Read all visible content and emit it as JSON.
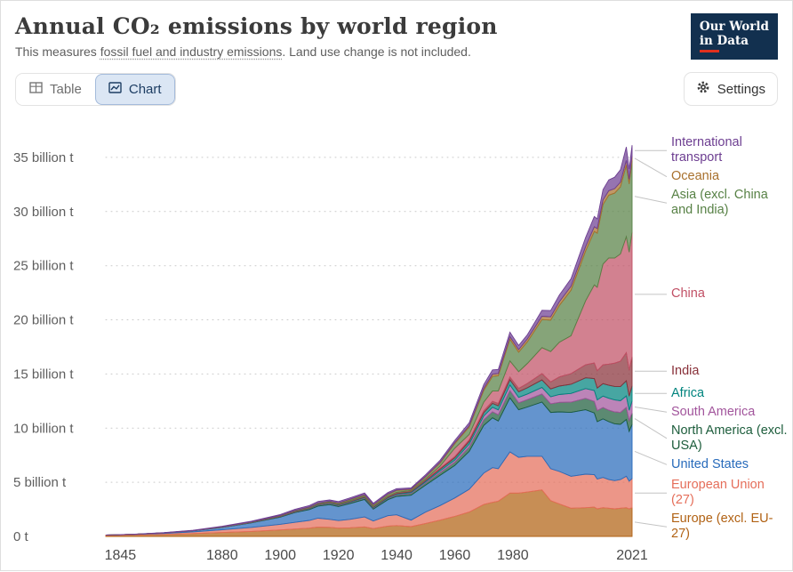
{
  "header": {
    "title": "Annual CO₂ emissions by world region",
    "subtitle_prefix": "This measures ",
    "subtitle_underlined": "fossil fuel and industry emissions",
    "subtitle_suffix": ". Land use change is not included.",
    "logo_line1": "Our World",
    "logo_line2": "in Data"
  },
  "toolbar": {
    "table_label": "Table",
    "chart_label": "Chart",
    "settings_label": "Settings",
    "icons": {
      "table": "table-grid-icon",
      "chart": "line-chart-icon",
      "settings": "gear-icon"
    }
  },
  "chart_data": {
    "type": "area",
    "stacked": true,
    "title": "Annual CO₂ emissions by world region",
    "unit": "billion t",
    "xlabel": "",
    "ylabel": "",
    "grid": "dotted-horizontal",
    "legend_position": "right",
    "xlim": [
      1840,
      2021
    ],
    "ylim": [
      0,
      36.8
    ],
    "xticks": [
      1845,
      1880,
      1900,
      1920,
      1940,
      1960,
      1980,
      2021
    ],
    "yticks": [
      0,
      5,
      10,
      15,
      20,
      25,
      30,
      35
    ],
    "ytick_labels": [
      "0 t",
      "5 billion t",
      "10 billion t",
      "15 billion t",
      "20 billion t",
      "25 billion t",
      "30 billion t",
      "35 billion t"
    ],
    "x": [
      1840,
      1845,
      1850,
      1860,
      1870,
      1880,
      1890,
      1900,
      1905,
      1910,
      1913,
      1917,
      1920,
      1924,
      1929,
      1932,
      1937,
      1940,
      1945,
      1950,
      1955,
      1960,
      1965,
      1970,
      1973,
      1975,
      1979,
      1982,
      1985,
      1990,
      1993,
      1996,
      2000,
      2005,
      2008,
      2009,
      2011,
      2013,
      2015,
      2017,
      2019,
      2020,
      2021
    ],
    "series": [
      {
        "key": "europe-excl-eu27",
        "name": "Europe (excl. EU-27)",
        "color": "#B16214",
        "values": [
          0.09,
          0.11,
          0.13,
          0.18,
          0.26,
          0.36,
          0.46,
          0.6,
          0.68,
          0.76,
          0.86,
          0.84,
          0.76,
          0.8,
          0.88,
          0.72,
          0.95,
          1.0,
          0.9,
          1.2,
          1.5,
          1.85,
          2.25,
          2.95,
          3.15,
          3.25,
          4.0,
          4.0,
          4.1,
          4.3,
          3.3,
          3.0,
          2.6,
          2.65,
          2.7,
          2.55,
          2.65,
          2.6,
          2.55,
          2.6,
          2.65,
          2.55,
          2.65
        ]
      },
      {
        "key": "european-union-27",
        "name": "European Union (27)",
        "color": "#E56E5A",
        "values": [
          0.03,
          0.04,
          0.05,
          0.09,
          0.16,
          0.26,
          0.37,
          0.52,
          0.62,
          0.72,
          0.82,
          0.74,
          0.7,
          0.78,
          0.92,
          0.7,
          0.96,
          1.0,
          0.6,
          1.05,
          1.35,
          1.7,
          2.1,
          2.9,
          3.2,
          3.0,
          3.8,
          3.3,
          3.3,
          3.1,
          2.95,
          3.0,
          2.95,
          3.1,
          3.0,
          2.75,
          2.8,
          2.65,
          2.6,
          2.65,
          2.9,
          2.55,
          2.7
        ]
      },
      {
        "key": "united-states",
        "name": "United States",
        "color": "#286BBB",
        "values": [
          0.005,
          0.01,
          0.02,
          0.05,
          0.1,
          0.21,
          0.42,
          0.66,
          0.9,
          1.0,
          1.12,
          1.35,
          1.3,
          1.45,
          1.62,
          1.1,
          1.48,
          1.7,
          2.3,
          2.5,
          2.8,
          3.0,
          3.5,
          4.4,
          4.6,
          4.4,
          5.0,
          4.4,
          4.55,
          5.0,
          5.2,
          5.5,
          5.9,
          5.95,
          5.7,
          5.3,
          5.4,
          5.35,
          5.25,
          5.1,
          5.25,
          4.6,
          5.0
        ]
      },
      {
        "key": "north-america-excl-usa",
        "name": "North America (excl. USA)",
        "color": "#1D5D3C",
        "values": [
          0.0,
          0.0,
          0.0,
          0.01,
          0.01,
          0.02,
          0.03,
          0.05,
          0.07,
          0.08,
          0.1,
          0.11,
          0.1,
          0.11,
          0.13,
          0.1,
          0.12,
          0.14,
          0.17,
          0.2,
          0.25,
          0.3,
          0.4,
          0.52,
          0.56,
          0.58,
          0.66,
          0.64,
          0.68,
          0.75,
          0.8,
          0.88,
          0.95,
          1.05,
          1.07,
          1.02,
          1.05,
          1.06,
          1.1,
          1.1,
          1.12,
          1.0,
          1.05
        ]
      },
      {
        "key": "south-america",
        "name": "South America",
        "color": "#A2559C",
        "values": [
          0.0,
          0.0,
          0.0,
          0.0,
          0.0,
          0.01,
          0.01,
          0.01,
          0.02,
          0.02,
          0.03,
          0.03,
          0.03,
          0.04,
          0.04,
          0.04,
          0.05,
          0.05,
          0.07,
          0.1,
          0.15,
          0.2,
          0.27,
          0.35,
          0.42,
          0.45,
          0.52,
          0.5,
          0.52,
          0.6,
          0.65,
          0.72,
          0.8,
          0.9,
          1.0,
          0.98,
          1.05,
          1.1,
          1.1,
          1.08,
          1.05,
          0.95,
          1.1
        ]
      },
      {
        "key": "africa",
        "name": "Africa",
        "color": "#00847E",
        "values": [
          0.0,
          0.0,
          0.0,
          0.0,
          0.0,
          0.01,
          0.01,
          0.02,
          0.02,
          0.03,
          0.03,
          0.04,
          0.04,
          0.05,
          0.05,
          0.05,
          0.06,
          0.07,
          0.09,
          0.12,
          0.16,
          0.2,
          0.25,
          0.3,
          0.35,
          0.38,
          0.48,
          0.52,
          0.58,
          0.7,
          0.72,
          0.78,
          0.85,
          1.0,
          1.1,
          1.1,
          1.15,
          1.2,
          1.25,
          1.3,
          1.4,
          1.3,
          1.4
        ]
      },
      {
        "key": "india",
        "name": "India",
        "color": "#883039",
        "values": [
          0.0,
          0.0,
          0.0,
          0.0,
          0.0,
          0.01,
          0.01,
          0.02,
          0.02,
          0.03,
          0.03,
          0.04,
          0.04,
          0.04,
          0.05,
          0.05,
          0.06,
          0.06,
          0.06,
          0.06,
          0.09,
          0.11,
          0.15,
          0.18,
          0.2,
          0.22,
          0.25,
          0.3,
          0.4,
          0.58,
          0.65,
          0.85,
          0.98,
          1.2,
          1.45,
          1.6,
          1.75,
          1.95,
          2.15,
          2.35,
          2.6,
          2.4,
          2.7
        ]
      },
      {
        "key": "china",
        "name": "China",
        "color": "#C15065",
        "values": [
          0.0,
          0.0,
          0.0,
          0.0,
          0.0,
          0.0,
          0.0,
          0.01,
          0.01,
          0.02,
          0.02,
          0.02,
          0.02,
          0.03,
          0.03,
          0.03,
          0.04,
          0.05,
          0.04,
          0.08,
          0.2,
          0.78,
          0.5,
          0.8,
          0.95,
          1.15,
          1.5,
          1.55,
          1.85,
          2.4,
          2.8,
          3.2,
          3.5,
          5.9,
          7.2,
          7.7,
          9.3,
          9.8,
          9.7,
          9.9,
          10.7,
          10.9,
          11.5
        ]
      },
      {
        "key": "asia-excl-china-india",
        "name": "Asia (excl. China and India)",
        "color": "#578145",
        "values": [
          0.0,
          0.0,
          0.0,
          0.0,
          0.0,
          0.01,
          0.02,
          0.03,
          0.04,
          0.05,
          0.06,
          0.07,
          0.08,
          0.1,
          0.12,
          0.12,
          0.16,
          0.18,
          0.1,
          0.18,
          0.28,
          0.42,
          0.68,
          1.1,
          1.35,
          1.4,
          2.0,
          1.8,
          2.0,
          2.6,
          2.9,
          3.4,
          4.2,
          4.6,
          4.95,
          5.0,
          5.5,
          5.8,
          6.0,
          6.2,
          6.6,
          6.3,
          6.6
        ]
      },
      {
        "key": "oceania",
        "name": "Oceania",
        "color": "#A8702C",
        "values": [
          0.0,
          0.0,
          0.0,
          0.0,
          0.005,
          0.005,
          0.01,
          0.01,
          0.015,
          0.02,
          0.02,
          0.02,
          0.03,
          0.03,
          0.03,
          0.03,
          0.04,
          0.04,
          0.05,
          0.06,
          0.08,
          0.1,
          0.13,
          0.18,
          0.2,
          0.21,
          0.23,
          0.24,
          0.26,
          0.3,
          0.31,
          0.34,
          0.37,
          0.4,
          0.42,
          0.42,
          0.42,
          0.41,
          0.42,
          0.43,
          0.44,
          0.42,
          0.43
        ]
      },
      {
        "key": "international-transport",
        "name": "International transport",
        "color": "#6D3E91",
        "values": [
          0.0,
          0.005,
          0.01,
          0.02,
          0.03,
          0.04,
          0.06,
          0.09,
          0.1,
          0.12,
          0.14,
          0.11,
          0.12,
          0.13,
          0.14,
          0.12,
          0.13,
          0.12,
          0.1,
          0.15,
          0.18,
          0.2,
          0.28,
          0.35,
          0.4,
          0.38,
          0.42,
          0.38,
          0.4,
          0.55,
          0.58,
          0.62,
          0.7,
          0.85,
          0.95,
          0.9,
          0.95,
          1.0,
          1.05,
          1.15,
          1.25,
          0.95,
          1.0
        ]
      }
    ]
  }
}
